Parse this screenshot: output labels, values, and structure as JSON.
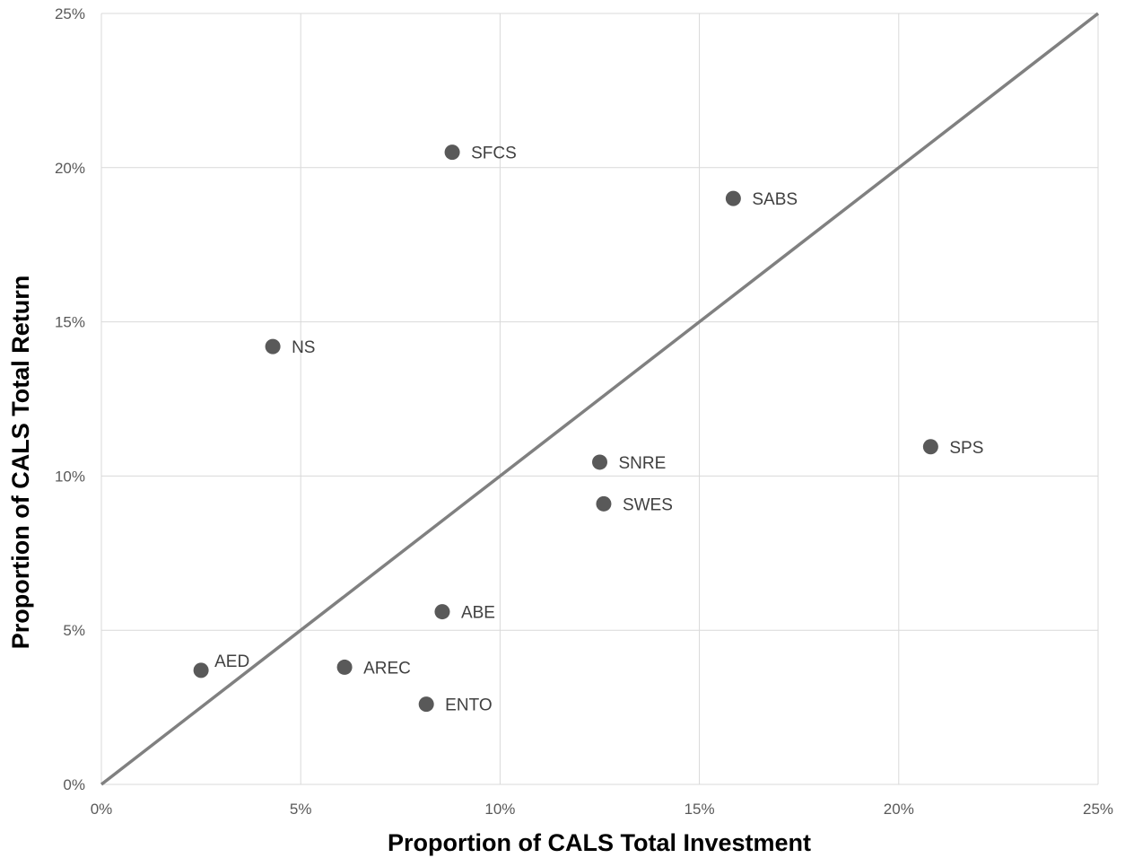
{
  "chart_data": {
    "type": "scatter",
    "xlabel": "Proportion of CALS Total Investment",
    "ylabel": "Proportion of CALS Total Return",
    "xlim": [
      0,
      25
    ],
    "ylim": [
      0,
      25
    ],
    "x_ticks": [
      "0%",
      "5%",
      "10%",
      "15%",
      "20%",
      "25%"
    ],
    "y_ticks": [
      "0%",
      "5%",
      "10%",
      "15%",
      "20%",
      "25%"
    ],
    "grid": true,
    "reference_line": {
      "from": [
        0,
        0
      ],
      "to": [
        25,
        25
      ]
    },
    "points": [
      {
        "label": "SFCS",
        "x": 8.8,
        "y": 20.5
      },
      {
        "label": "SABS",
        "x": 15.85,
        "y": 19.0
      },
      {
        "label": "NS",
        "x": 4.3,
        "y": 14.2
      },
      {
        "label": "SPS",
        "x": 20.8,
        "y": 10.95
      },
      {
        "label": "SNRE",
        "x": 12.5,
        "y": 10.45
      },
      {
        "label": "SWES",
        "x": 12.6,
        "y": 9.1
      },
      {
        "label": "ABE",
        "x": 8.55,
        "y": 5.6
      },
      {
        "label": "AED",
        "x": 2.5,
        "y": 3.7
      },
      {
        "label": "AREC",
        "x": 6.1,
        "y": 3.8
      },
      {
        "label": "ENTO",
        "x": 8.15,
        "y": 2.6
      }
    ],
    "colors": {
      "marker": "#595959",
      "line": "#808080",
      "grid": "#d9d9d9"
    }
  }
}
